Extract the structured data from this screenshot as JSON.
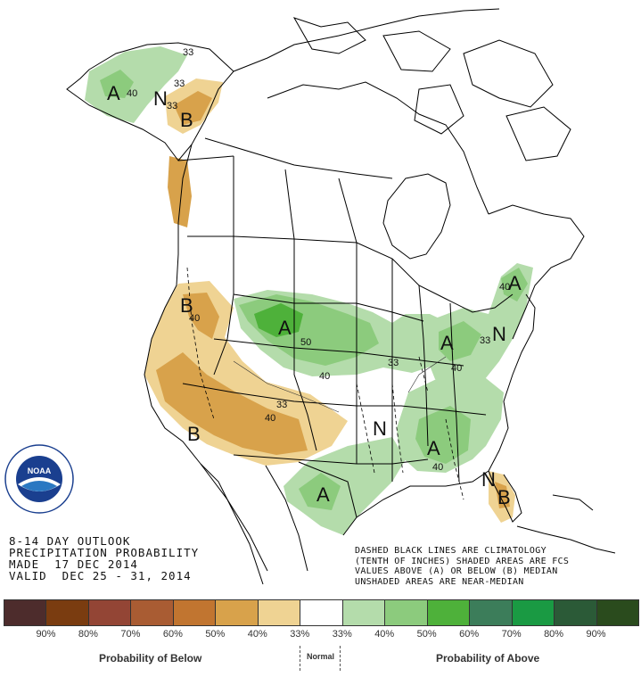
{
  "map": {
    "letters": {
      "above": "A",
      "below": "B",
      "normal": "N"
    },
    "contour_labels": {
      "c33": "33",
      "c40": "40",
      "c50": "50"
    }
  },
  "outlook": {
    "line1": "8-14 DAY OUTLOOK",
    "line2": "PRECIPITATION PROBABILITY",
    "line3": "MADE  17 DEC 2014",
    "line4": "VALID  DEC 25 - 31, 2014"
  },
  "notes": {
    "line1": "DASHED BLACK LINES ARE CLIMATOLOGY",
    "line2": "(TENTH OF INCHES) SHADED AREAS ARE FCS",
    "line3": "VALUES ABOVE (A) OR BELOW (B) MEDIAN",
    "line4": "UNSHADED AREAS ARE NEAR-MEDIAN"
  },
  "logo": {
    "text": "NOAA",
    "ring_text": "NATIONAL OCEANIC AND ATMOSPHERIC ADMINISTRATION · U.S. DEPARTMENT OF COMMERCE"
  },
  "legend": {
    "colors": [
      "#4d2c2c",
      "#7a3c10",
      "#934535",
      "#a95c33",
      "#c17530",
      "#d8a24b",
      "#efd393",
      "#ffffff",
      "#b4dcab",
      "#8ccb7d",
      "#4eb13a",
      "#3c7d5a",
      "#1a9a43",
      "#2b5a37",
      "#2a4b1d"
    ],
    "ticks": [
      "90%",
      "80%",
      "70%",
      "60%",
      "50%",
      "40%",
      "33%",
      "33%",
      "40%",
      "50%",
      "60%",
      "70%",
      "80%",
      "90%"
    ],
    "below_label": "Probability of Below",
    "normal_label": "Normal",
    "above_label": "Probability of Above"
  }
}
